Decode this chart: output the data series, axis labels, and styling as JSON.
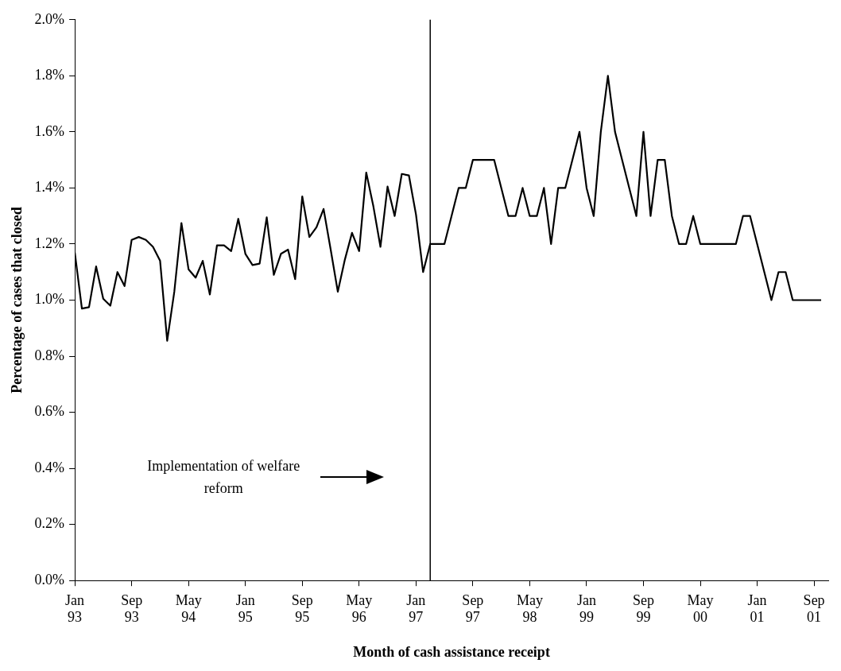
{
  "chart_data": {
    "type": "line",
    "xlabel": "Month of cash assistance receipt",
    "ylabel": "Percentage of cases that closed",
    "x": [
      "1993-01",
      "1993-02",
      "1993-03",
      "1993-04",
      "1993-05",
      "1993-06",
      "1993-07",
      "1993-08",
      "1993-09",
      "1993-10",
      "1993-11",
      "1993-12",
      "1994-01",
      "1994-02",
      "1994-03",
      "1994-04",
      "1994-05",
      "1994-06",
      "1994-07",
      "1994-08",
      "1994-09",
      "1994-10",
      "1994-11",
      "1994-12",
      "1995-01",
      "1995-02",
      "1995-03",
      "1995-04",
      "1995-05",
      "1995-06",
      "1995-07",
      "1995-08",
      "1995-09",
      "1995-10",
      "1995-11",
      "1995-12",
      "1996-01",
      "1996-02",
      "1996-03",
      "1996-04",
      "1996-05",
      "1996-06",
      "1996-07",
      "1996-08",
      "1996-09",
      "1996-10",
      "1996-11",
      "1996-12",
      "1997-01",
      "1997-02",
      "1997-03",
      "1997-04",
      "1997-05",
      "1997-06",
      "1997-07",
      "1997-08",
      "1997-09",
      "1997-10",
      "1997-11",
      "1997-12",
      "1998-01",
      "1998-02",
      "1998-03",
      "1998-04",
      "1998-05",
      "1998-06",
      "1998-07",
      "1998-08",
      "1998-09",
      "1998-10",
      "1998-11",
      "1998-12",
      "1999-01",
      "1999-02",
      "1999-03",
      "1999-04",
      "1999-05",
      "1999-06",
      "1999-07",
      "1999-08",
      "1999-09",
      "1999-10",
      "1999-11",
      "1999-12",
      "2000-01",
      "2000-02",
      "2000-03",
      "2000-04",
      "2000-05",
      "2000-06",
      "2000-07",
      "2000-08",
      "2000-09",
      "2000-10",
      "2000-11",
      "2000-12",
      "2001-01",
      "2001-02",
      "2001-03",
      "2001-04",
      "2001-05",
      "2001-06",
      "2001-07",
      "2001-08",
      "2001-09",
      "2001-10"
    ],
    "series": [
      {
        "color": "#000000",
        "values": [
          1.17,
          0.97,
          0.975,
          1.12,
          1.005,
          0.98,
          1.1,
          1.05,
          1.215,
          1.225,
          1.215,
          1.19,
          1.14,
          0.855,
          1.03,
          1.275,
          1.11,
          1.08,
          1.14,
          1.02,
          1.195,
          1.195,
          1.175,
          1.29,
          1.165,
          1.125,
          1.13,
          1.295,
          1.09,
          1.165,
          1.18,
          1.075,
          1.37,
          1.225,
          1.26,
          1.325,
          1.18,
          1.03,
          1.145,
          1.24,
          1.175,
          1.455,
          1.335,
          1.19,
          1.405,
          1.3,
          1.45,
          1.445,
          1.305,
          1.1,
          1.2,
          1.2,
          1.2,
          1.3,
          1.4,
          1.4,
          1.5,
          1.5,
          1.5,
          1.5,
          1.4,
          1.3,
          1.3,
          1.4,
          1.3,
          1.3,
          1.4,
          1.2,
          1.4,
          1.4,
          1.5,
          1.6,
          1.4,
          1.3,
          1.6,
          1.8,
          1.6,
          1.5,
          1.4,
          1.3,
          1.6,
          1.3,
          1.5,
          1.5,
          1.3,
          1.2,
          1.2,
          1.3,
          1.2,
          1.2,
          1.2,
          1.2,
          1.2,
          1.2,
          1.3,
          1.3,
          1.2,
          1.1,
          1.0,
          1.1,
          1.1,
          1.0,
          1.0,
          1.0,
          1.0,
          1.0
        ]
      }
    ],
    "xlim": [
      "1993-01",
      "2001-11"
    ],
    "xticks": [
      {
        "value": "1993-01",
        "label": "Jan 93"
      },
      {
        "value": "1993-09",
        "label": "Sep 93"
      },
      {
        "value": "1994-05",
        "label": "May 94"
      },
      {
        "value": "1995-01",
        "label": "Jan 95"
      },
      {
        "value": "1995-09",
        "label": "Sep 95"
      },
      {
        "value": "1996-05",
        "label": "May 96"
      },
      {
        "value": "1997-01",
        "label": "Jan 97"
      },
      {
        "value": "1997-09",
        "label": "Sep 97"
      },
      {
        "value": "1998-05",
        "label": "May 98"
      },
      {
        "value": "1999-01",
        "label": "Jan 99"
      },
      {
        "value": "1999-09",
        "label": "Sep 99"
      },
      {
        "value": "2000-05",
        "label": "May 00"
      },
      {
        "value": "2001-01",
        "label": "Jan 01"
      },
      {
        "value": "2001-09",
        "label": "Sep 01"
      }
    ],
    "ylim": [
      0,
      2.0
    ],
    "yticks": [
      {
        "value": 0,
        "label": "0.0%"
      },
      {
        "value": 0.2,
        "label": "0.2%"
      },
      {
        "value": 0.4,
        "label": "0.4%"
      },
      {
        "value": 0.6,
        "label": "0.6%"
      },
      {
        "value": 0.8,
        "label": "0.8%"
      },
      {
        "value": 1.0,
        "label": "1.0%"
      },
      {
        "value": 1.2,
        "label": "1.2%"
      },
      {
        "value": 1.4,
        "label": "1.4%"
      },
      {
        "value": 1.6,
        "label": "1.6%"
      },
      {
        "value": 1.8,
        "label": "1.8%"
      },
      {
        "value": 2.0,
        "label": "2.0%"
      }
    ],
    "ref_lines": [
      {
        "axis": "x",
        "value": "1997-03",
        "color": "#000000"
      }
    ],
    "annotations": [
      "Implementation of welfare reform"
    ],
    "grid": false,
    "legend": false,
    "marker": "none",
    "line_style": "solid"
  }
}
